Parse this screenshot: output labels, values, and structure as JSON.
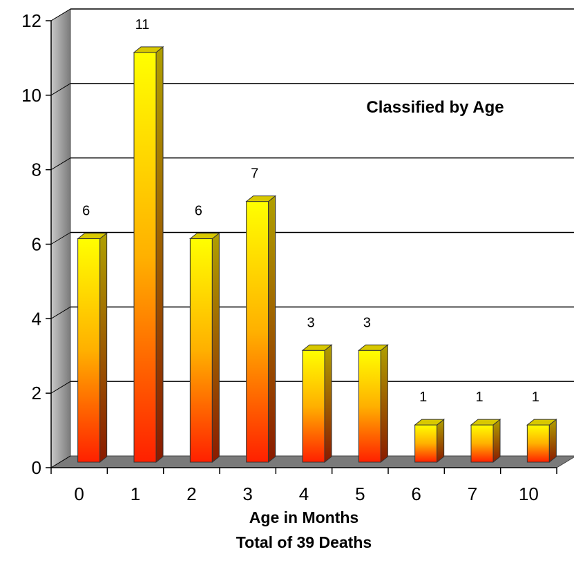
{
  "chart_data": {
    "type": "bar",
    "title": "Classified by Age",
    "xlabel": "Age in Months",
    "subtitle": "Total of 39 Deaths",
    "categories": [
      "0",
      "1",
      "2",
      "3",
      "4",
      "5",
      "6",
      "7",
      "10"
    ],
    "values": [
      6,
      11,
      6,
      7,
      3,
      3,
      1,
      1,
      1
    ],
    "data_labels": [
      "6",
      "11",
      "6",
      "7",
      "3",
      "3",
      "1",
      "1",
      "1"
    ],
    "ylim": [
      0,
      12
    ],
    "y_ticks": [
      "0",
      "2",
      "4",
      "6",
      "8",
      "10",
      "12"
    ],
    "grid": true,
    "style": "3d",
    "colors": {
      "bar_top": "#ffff00",
      "bar_bottom": "#ff2000",
      "bar_side": "#a09000",
      "bar_cap": "#d8c800",
      "floor": "#7a7a7a",
      "wall": "#9a9a9a",
      "gridline": "#000000"
    }
  }
}
